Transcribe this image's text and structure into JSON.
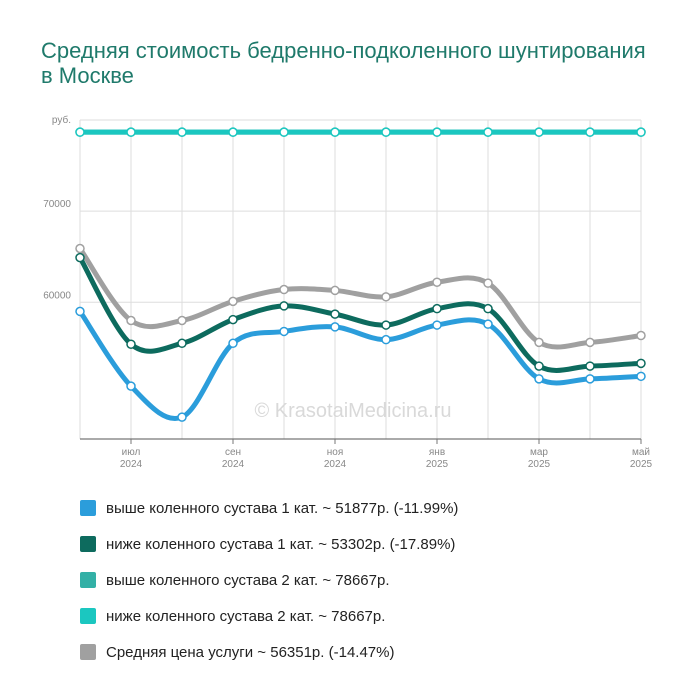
{
  "title": "Средняя стоимость бедренно-подколенного шунтирования в Москве",
  "watermark": "© KrasotaiMedicina.ru",
  "chart_data": {
    "type": "line",
    "ylabel": "руб.",
    "ylim": [
      45000,
      80000
    ],
    "yticks": [
      60000,
      70000
    ],
    "yticklabels": [
      "60000",
      "70000"
    ],
    "x": [
      "2024-06",
      "2024-07",
      "2024-08",
      "2024-09",
      "2024-10",
      "2024-11",
      "2024-12",
      "2025-01",
      "2025-02",
      "2025-03",
      "2025-04",
      "2025-05"
    ],
    "xtick_labels": [
      {
        "month": "июл",
        "year": "2024",
        "index": 1
      },
      {
        "month": "сен",
        "year": "2024",
        "index": 3
      },
      {
        "month": "ноя",
        "year": "2024",
        "index": 5
      },
      {
        "month": "янв",
        "year": "2025",
        "index": 7
      },
      {
        "month": "мар",
        "year": "2025",
        "index": 9
      },
      {
        "month": "май",
        "year": "2025",
        "index": 11
      }
    ],
    "grid": true,
    "legend_position": "bottom",
    "series": [
      {
        "name": "Средняя цена услуги ~ 56351р. (-14.47%)",
        "color": "#a0a0a0",
        "values": [
          65900,
          58000,
          58000,
          60100,
          61400,
          61300,
          60600,
          62200,
          62100,
          55600,
          55600,
          56351
        ]
      },
      {
        "name": "выше коленного сустава 1 кат. ~ 51877р. (-11.99%)",
        "color": "#2b9ddb",
        "values": [
          59000,
          50800,
          47400,
          55500,
          56800,
          57300,
          55900,
          57500,
          57600,
          51600,
          51600,
          51877
        ]
      },
      {
        "name": "ниже коленного сустава 1 кат. ~ 53302р. (-17.89%)",
        "color": "#0d6b5e",
        "values": [
          64900,
          55400,
          55500,
          58100,
          59600,
          58700,
          57500,
          59300,
          59300,
          53000,
          53000,
          53302
        ]
      },
      {
        "name": "выше коленного сустава 2 кат. ~ 78667р.",
        "color": "#33b0a6",
        "values": [
          78667,
          78667,
          78667,
          78667,
          78667,
          78667,
          78667,
          78667,
          78667,
          78667,
          78667,
          78667
        ]
      },
      {
        "name": "ниже коленного сустава 2 кат. ~ 78667р.",
        "color": "#1bc7c0",
        "values": [
          78667,
          78667,
          78667,
          78667,
          78667,
          78667,
          78667,
          78667,
          78667,
          78667,
          78667,
          78667
        ]
      }
    ],
    "legend_order": [
      1,
      2,
      3,
      4,
      0
    ]
  }
}
